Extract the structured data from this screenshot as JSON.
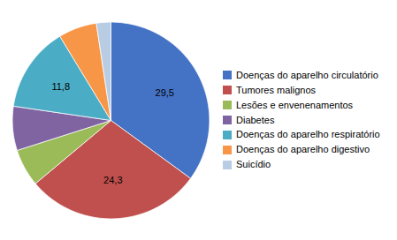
{
  "chart_data": {
    "type": "pie",
    "categories": [
      "Doenças do aparelho circulatório",
      "Tumores malignos",
      "Lesões e envenenamentos",
      "Diabetes",
      "Doenças do aparelho respiratório",
      "Doenças do aparelho digestivo",
      "Suicídio"
    ],
    "values": [
      29.5,
      24.3,
      5.2,
      6.1,
      11.8,
      5.3,
      2.0
    ],
    "value_labels": [
      "29,5",
      "24,3",
      null,
      null,
      "11,8",
      null,
      null
    ],
    "colors": [
      "#4472C4",
      "#C0504D",
      "#9BBB59",
      "#8064A2",
      "#4BACC6",
      "#F79646",
      "#B8CCE4"
    ],
    "data_labels": true,
    "legend": "right"
  }
}
